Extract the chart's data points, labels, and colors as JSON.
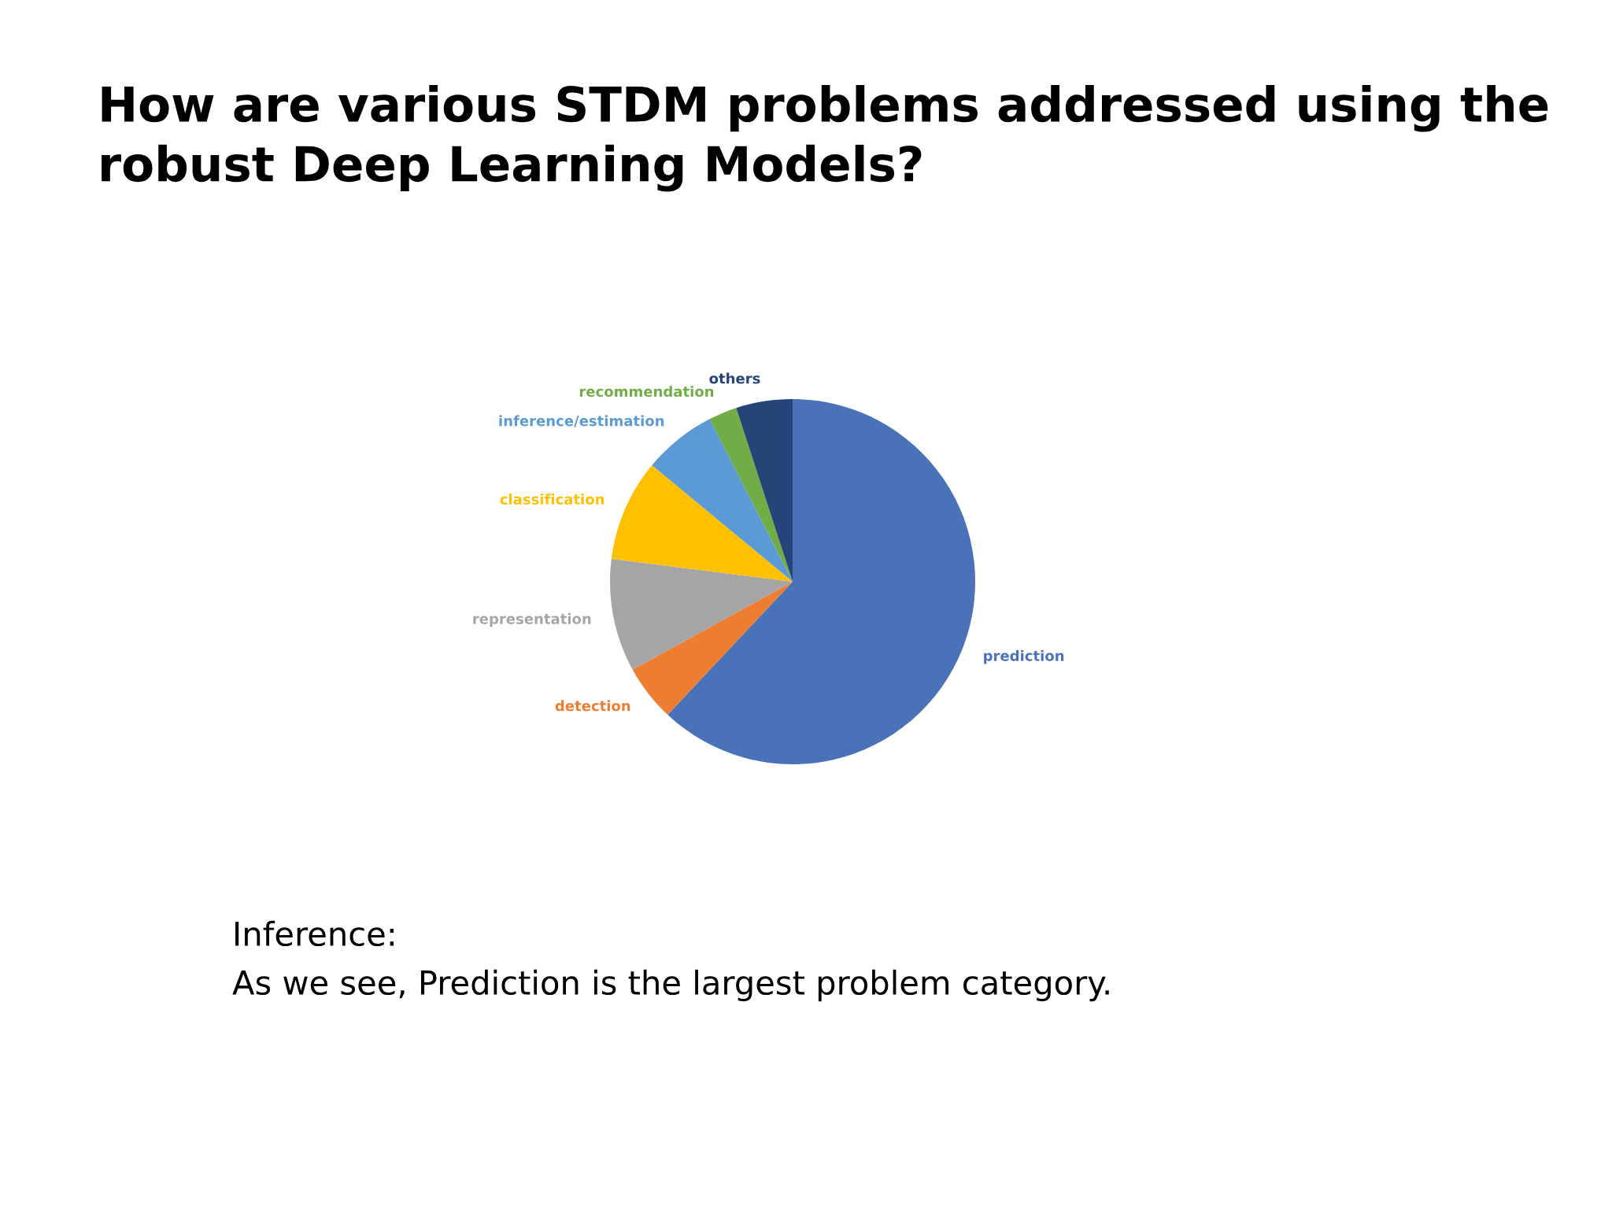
{
  "chart_data": {
    "type": "pie",
    "title": "How are various STDM problems addressed using the robust Deep Learning Models?",
    "categories": [
      "prediction",
      "detection",
      "representation",
      "classification",
      "inference/estimation",
      "recommendation",
      "others"
    ],
    "values": [
      62,
      5,
      10,
      9,
      6.5,
      2.5,
      5
    ],
    "colors": [
      "#4a72b8",
      "#ed7d31",
      "#a5a5a5",
      "#ffc000",
      "#5b9bd5",
      "#70ad47",
      "#264478"
    ],
    "annotations": [
      "Inference:",
      "As we see, Prediction is the largest problem category."
    ]
  }
}
